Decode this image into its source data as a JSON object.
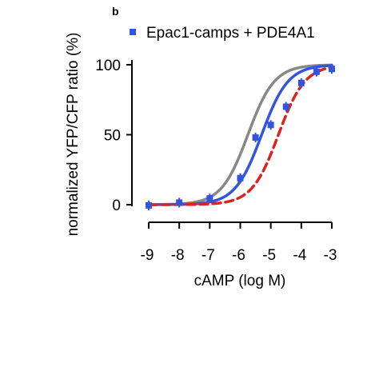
{
  "panel_label": "b",
  "chart_data": {
    "type": "scatter",
    "xlabel": "cAMP (log M)",
    "ylabel": "normalized YFP/CFP ratio (%)",
    "xlim": [
      -9,
      -3
    ],
    "ylim": [
      0,
      100
    ],
    "xticks": [
      "-9",
      "-8",
      "-7",
      "-6",
      "-5",
      "-4",
      "-3"
    ],
    "yticks": [
      "0",
      "50",
      "100"
    ],
    "legend_position": "top",
    "series": [
      {
        "name": "Epac1-camps + PDE4A1",
        "color": "#3355dd",
        "marker": "square",
        "points": [
          {
            "x": -9.0,
            "y": -0.5
          },
          {
            "x": -8.0,
            "y": 1.5
          },
          {
            "x": -7.0,
            "y": 4.5
          },
          {
            "x": -6.0,
            "y": 19.0
          },
          {
            "x": -5.5,
            "y": 48.0
          },
          {
            "x": -5.0,
            "y": 57.0
          },
          {
            "x": -4.5,
            "y": 70.0
          },
          {
            "x": -4.0,
            "y": 87.0
          },
          {
            "x": -3.5,
            "y": 95.0
          },
          {
            "x": -3.0,
            "y": 97.0
          }
        ],
        "fit": {
          "ec50_log": -5.3,
          "hill": 1.0,
          "bottom": 0,
          "top": 100,
          "style": "solid"
        }
      },
      {
        "color": "#888888",
        "fit": {
          "ec50_log": -5.75,
          "hill": 1.0,
          "bottom": 0,
          "top": 100,
          "style": "solid"
        }
      },
      {
        "color": "#dd2222",
        "fit": {
          "ec50_log": -4.75,
          "hill": 1.0,
          "bottom": 0,
          "top": 100,
          "style": "dashed"
        }
      }
    ]
  }
}
